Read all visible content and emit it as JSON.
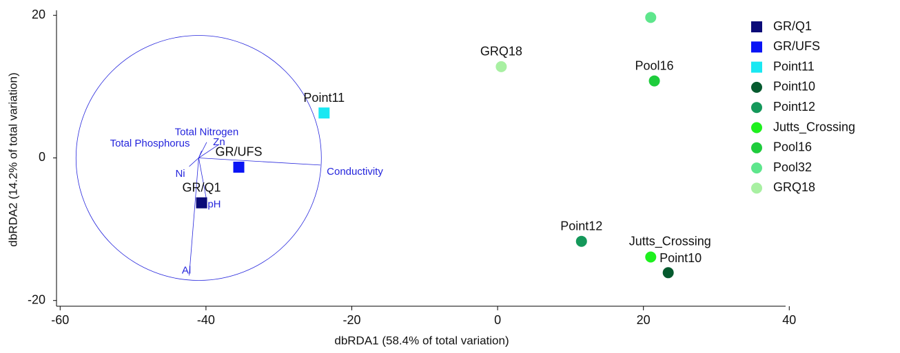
{
  "chart_data": {
    "type": "scatter",
    "xlabel": "dbRDA1 (58.4% of total variation)",
    "ylabel": "dbRDA2 (14.2% of total variation)",
    "xlim": [
      -60.5,
      39.5
    ],
    "xticks": [
      -60,
      -40,
      -20,
      0,
      20,
      40
    ],
    "ylim": [
      -20.8,
      20.7
    ],
    "yticks": [
      -20,
      0,
      20
    ],
    "legend": "right",
    "series": [
      {
        "name": "GR/Q1",
        "color": "#0b0b78",
        "marker": "square",
        "labeled": true,
        "x": [
          -40.6
        ],
        "values": [
          -6.3
        ]
      },
      {
        "name": "GR/UFS",
        "color": "#0a14f5",
        "marker": "square",
        "labeled": true,
        "x": [
          -35.5
        ],
        "values": [
          -1.3
        ]
      },
      {
        "name": "Point11",
        "color": "#19e8f2",
        "marker": "square",
        "labeled": true,
        "x": [
          -23.8
        ],
        "values": [
          6.3
        ]
      },
      {
        "name": "Point10",
        "color": "#055a2e",
        "marker": "circle",
        "labeled": true,
        "x": [
          23.4
        ],
        "values": [
          -16.1
        ]
      },
      {
        "name": "Point12",
        "color": "#14985a",
        "marker": "circle",
        "labeled": true,
        "x": [
          11.5
        ],
        "values": [
          -11.7
        ]
      },
      {
        "name": "Jutts_Crossing",
        "color": "#1ef01e",
        "marker": "circle",
        "labeled": true,
        "x": [
          21.0
        ],
        "values": [
          -13.9
        ]
      },
      {
        "name": "Pool16",
        "color": "#1ecc3c",
        "marker": "circle",
        "labeled": true,
        "x": [
          21.5
        ],
        "values": [
          10.8
        ]
      },
      {
        "name": "Pool32",
        "color": "#5ee68c",
        "marker": "circle",
        "labeled": false,
        "x": [
          21.0
        ],
        "values": [
          19.7
        ]
      },
      {
        "name": "GRQ18",
        "color": "#a8f0a2",
        "marker": "circle",
        "labeled": true,
        "x": [
          0.5
        ],
        "values": [
          12.8
        ]
      }
    ],
    "vector_color": "#2424dc",
    "vector_origin": [
      -41,
      0
    ],
    "vectors": [
      {
        "name": "Total Phosphorus",
        "x": -40.6,
        "y": 1.0
      },
      {
        "name": "Total Nitrogen",
        "x": -39.9,
        "y": 2.2
      },
      {
        "name": "Zn",
        "x": -38.2,
        "y": 1.9
      },
      {
        "name": "Conductivity",
        "x": -24.3,
        "y": -1.0
      },
      {
        "name": "Ni",
        "x": -42.3,
        "y": -1.2
      },
      {
        "name": "pH",
        "x": -39.9,
        "y": -6.0
      },
      {
        "name": "Al",
        "x": -42.3,
        "y": -16.5
      }
    ]
  }
}
